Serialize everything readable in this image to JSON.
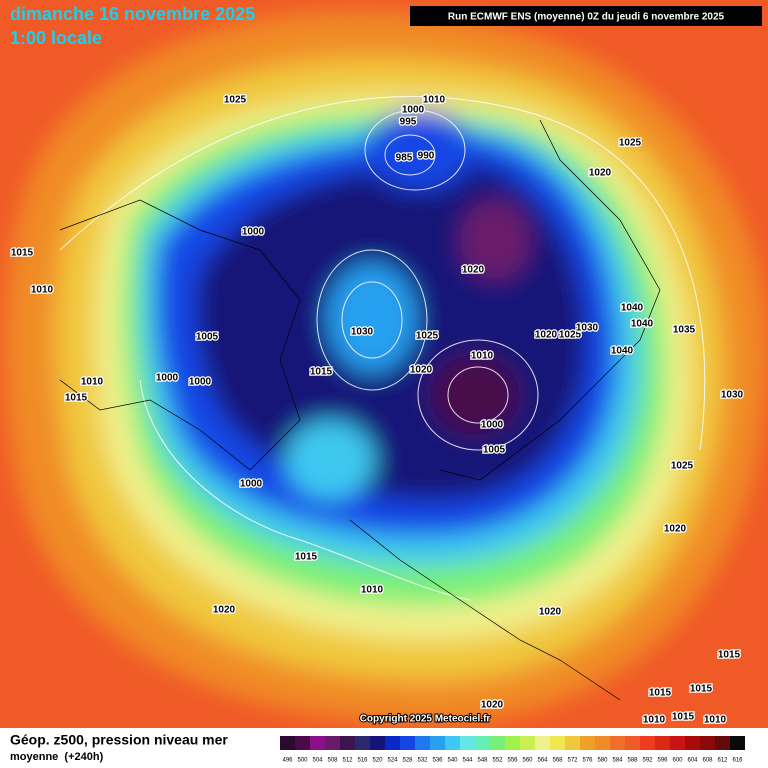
{
  "header": {
    "title": "dimanche 16 novembre 2025",
    "subtitle": "1:00 locale",
    "run": "Run ECMWF ENS (moyenne) 0Z du jeudi 6 novembre 2025"
  },
  "copyright": "Copyright 2025 Meteociel.fr",
  "footer": {
    "title": "Géop. z500, pression niveau mer",
    "subtitle": "moyenne  (+240h)"
  },
  "isobar_labels": [
    "1025",
    "1010",
    "1000",
    "995",
    "985",
    "990",
    "1025",
    "1020",
    "1000",
    "1015",
    "1010",
    "1020",
    "1040",
    "1040",
    "1035",
    "1030",
    "1025",
    "1020",
    "1025",
    "1030",
    "1005",
    "1010",
    "1040",
    "1015",
    "1020",
    "1000",
    "1000",
    "1010",
    "1015",
    "1030",
    "1000",
    "1005",
    "1025",
    "1000",
    "1020",
    "1015",
    "1010",
    "1020",
    "1020",
    "1015",
    "1015",
    "1015",
    "1015",
    "1010",
    "1010",
    "1020"
  ],
  "scale": {
    "labels": [
      496,
      500,
      504,
      508,
      512,
      516,
      520,
      524,
      528,
      532,
      536,
      540,
      544,
      548,
      552,
      556,
      560,
      564,
      568,
      572,
      576,
      580,
      584,
      588,
      592,
      596,
      600,
      604,
      608,
      612,
      616
    ],
    "colors": [
      "#2a0a30",
      "#4a0a4a",
      "#8a108a",
      "#6a1a6a",
      "#3c1450",
      "#2a2a70",
      "#141478",
      "#0a28c8",
      "#1446e6",
      "#1e78f0",
      "#28a0f0",
      "#3cc8f0",
      "#64e6e6",
      "#64f0b4",
      "#78f078",
      "#a0f050",
      "#c8f050",
      "#f0f08c",
      "#f0e650",
      "#f0c83c",
      "#f0a028",
      "#f08c28",
      "#f06e28",
      "#f05a28",
      "#f03c1e",
      "#dc2814",
      "#c81414",
      "#aa0a0a",
      "#8c0a0a",
      "#640a0a",
      "#0a0a0a"
    ]
  }
}
